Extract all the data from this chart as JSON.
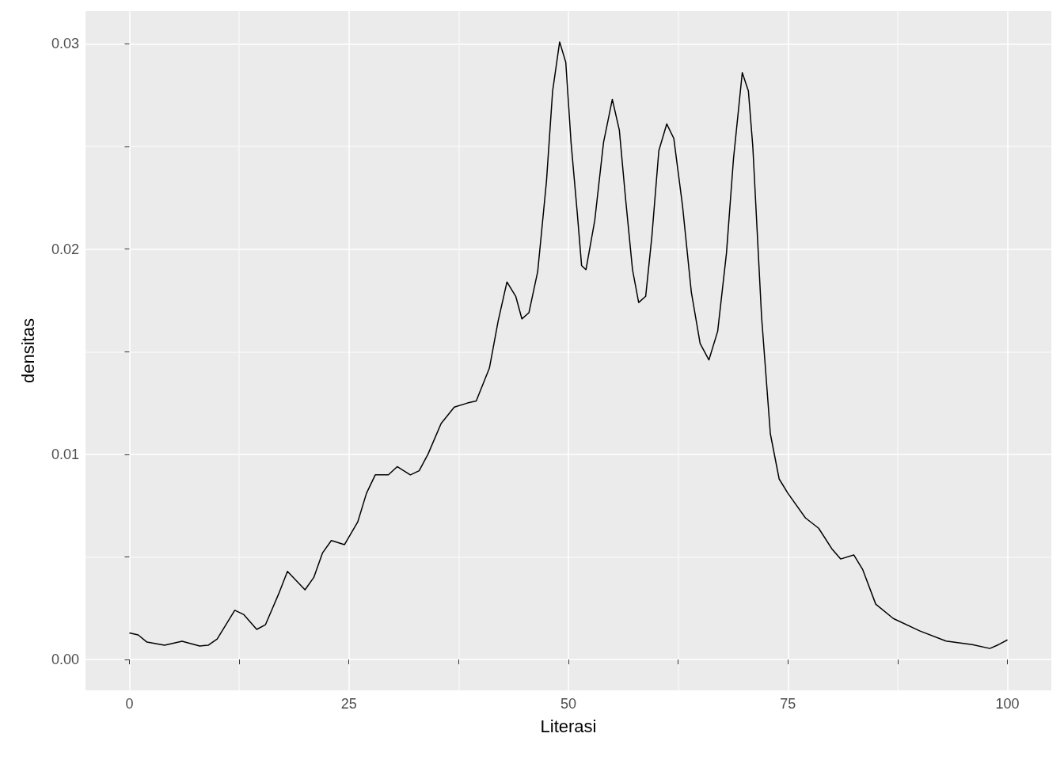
{
  "chart_data": {
    "type": "line",
    "xlabel": "Literasi",
    "ylabel": "densitas",
    "x": [
      0,
      1,
      2,
      4,
      6,
      8,
      9,
      10,
      12,
      13,
      14.5,
      15.5,
      17,
      18,
      20,
      21,
      22,
      23,
      24.5,
      26,
      27,
      28,
      29.5,
      30.5,
      32,
      33,
      34,
      35.5,
      37,
      38.5,
      39.5,
      41,
      42,
      43,
      44,
      44.7,
      45.5,
      46.5,
      47.5,
      48.2,
      49,
      49.7,
      50.3,
      51,
      51.5,
      52,
      53,
      54,
      55,
      55.8,
      56.5,
      57.3,
      58,
      58.8,
      59.5,
      60.3,
      61.2,
      62,
      63,
      64,
      65,
      66,
      67,
      68,
      68.8,
      69.8,
      70.5,
      71,
      72,
      73,
      74,
      75,
      77,
      78.5,
      80,
      81,
      82.5,
      83.5,
      85,
      87,
      90,
      93,
      96,
      98,
      99,
      100
    ],
    "series": [
      {
        "color": "#000000",
        "values": [
          0.0013,
          0.0012,
          0.00085,
          0.0007,
          0.00089,
          0.00066,
          0.0007,
          0.001,
          0.0024,
          0.0022,
          0.00147,
          0.0017,
          0.0032,
          0.0043,
          0.0034,
          0.004,
          0.0052,
          0.0058,
          0.0056,
          0.0067,
          0.0081,
          0.009,
          0.009,
          0.0094,
          0.009,
          0.0092,
          0.01,
          0.0115,
          0.0123,
          0.0125,
          0.0126,
          0.0142,
          0.0165,
          0.0184,
          0.0177,
          0.0166,
          0.0169,
          0.0189,
          0.0233,
          0.0277,
          0.0301,
          0.0291,
          0.0252,
          0.0218,
          0.0192,
          0.019,
          0.0214,
          0.0252,
          0.0273,
          0.0258,
          0.0225,
          0.019,
          0.0174,
          0.0177,
          0.0206,
          0.0248,
          0.0261,
          0.0254,
          0.0221,
          0.0179,
          0.0154,
          0.0146,
          0.016,
          0.0198,
          0.0244,
          0.0286,
          0.0277,
          0.025,
          0.0167,
          0.011,
          0.0088,
          0.0081,
          0.0069,
          0.0064,
          0.0054,
          0.0049,
          0.0051,
          0.0044,
          0.0027,
          0.002,
          0.0014,
          0.0009,
          0.00073,
          0.00054,
          0.00073,
          0.00096
        ]
      }
    ],
    "xlim": [
      -5,
      105
    ],
    "xticks": [
      0,
      {
        "value": 12.5,
        "label": null
      },
      25,
      {
        "value": 37.5,
        "label": null
      },
      50,
      {
        "value": 62.5,
        "label": null
      },
      75,
      {
        "value": 87.5,
        "label": null
      },
      100
    ],
    "ylim": [
      -0.0015,
      0.0316
    ],
    "yticks": [
      "0.00",
      {
        "value": 0.005,
        "label": null
      },
      {
        "value": 0.01,
        "label": "0.01"
      },
      {
        "value": 0.015,
        "label": null
      },
      {
        "value": 0.02,
        "label": "0.02"
      },
      {
        "value": 0.025,
        "label": null
      },
      {
        "value": 0.03,
        "label": "0.03"
      }
    ],
    "grid": true,
    "marker": "none",
    "line_style": "solid"
  }
}
